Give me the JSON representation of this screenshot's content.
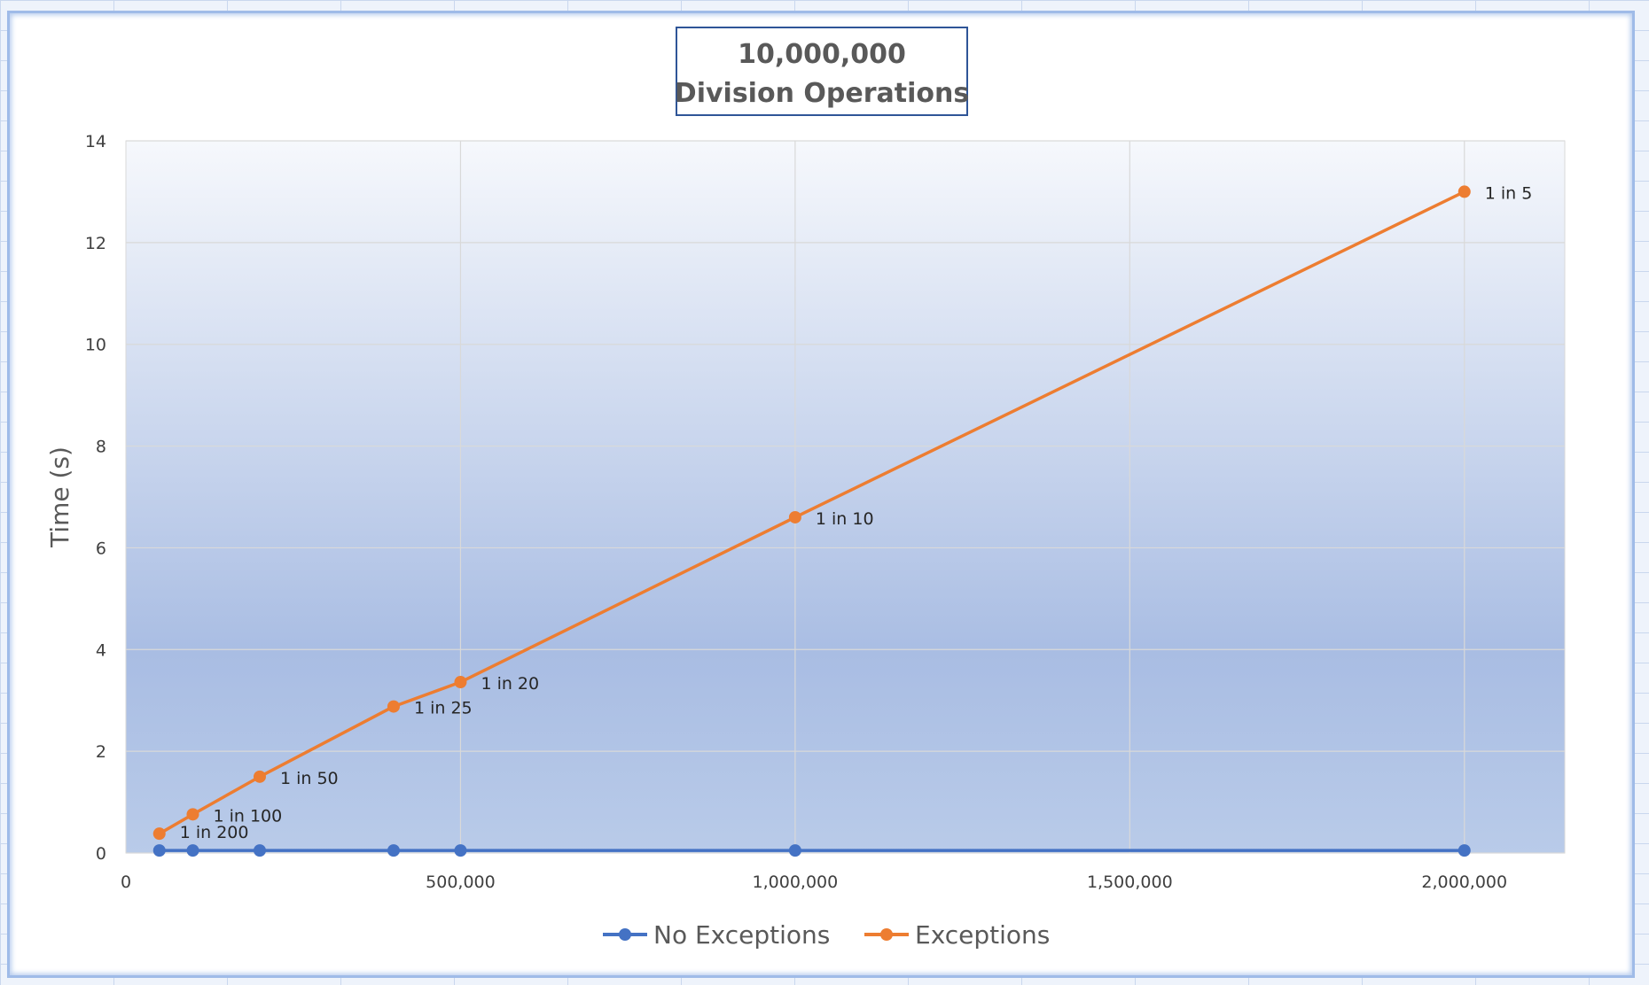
{
  "chart_data": {
    "type": "line",
    "title": [
      "10,000,000",
      "Division Operations"
    ],
    "xlabel": "",
    "ylabel": "Time (s)",
    "xlim": [
      0,
      2150000
    ],
    "ylim": [
      0,
      14
    ],
    "x_ticks": [
      0,
      500000,
      1000000,
      1500000,
      2000000
    ],
    "x_tick_labels": [
      "0",
      "500,000",
      "1,000,000",
      "1,500,000",
      "2,000,000"
    ],
    "y_ticks": [
      0,
      2,
      4,
      6,
      8,
      10,
      12,
      14
    ],
    "y_tick_labels": [
      "0",
      "2",
      "4",
      "6",
      "8",
      "10",
      "12",
      "14"
    ],
    "grid": true,
    "legend_position": "bottom",
    "series": [
      {
        "name": "No Exceptions",
        "color": "#4472C4",
        "points": [
          {
            "x": 50000,
            "y": 0.05
          },
          {
            "x": 100000,
            "y": 0.05
          },
          {
            "x": 200000,
            "y": 0.05
          },
          {
            "x": 400000,
            "y": 0.05
          },
          {
            "x": 500000,
            "y": 0.05
          },
          {
            "x": 1000000,
            "y": 0.05
          },
          {
            "x": 2000000,
            "y": 0.05
          }
        ]
      },
      {
        "name": "Exceptions",
        "color": "#ED7D31",
        "points": [
          {
            "x": 50000,
            "y": 0.38,
            "label": "1 in 200"
          },
          {
            "x": 100000,
            "y": 0.76,
            "label": "1 in 100"
          },
          {
            "x": 200000,
            "y": 1.5,
            "label": "1 in 50"
          },
          {
            "x": 400000,
            "y": 2.88,
            "label": "1 in 25"
          },
          {
            "x": 500000,
            "y": 3.36,
            "label": "1 in 20"
          },
          {
            "x": 1000000,
            "y": 6.6,
            "label": "1 in 10"
          },
          {
            "x": 2000000,
            "y": 13.0,
            "label": "1 in 5"
          }
        ]
      }
    ]
  }
}
